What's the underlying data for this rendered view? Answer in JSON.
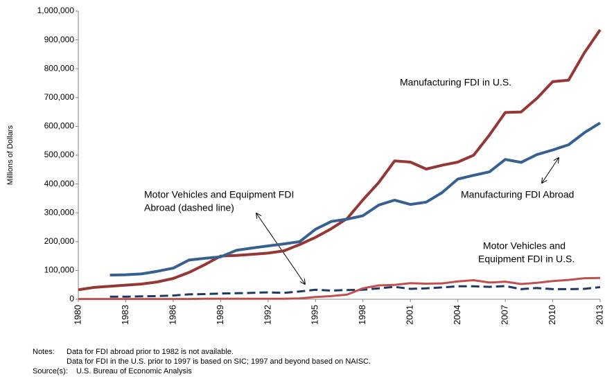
{
  "chart_data": {
    "type": "line",
    "y_label": "Millions of Dollars",
    "x": [
      1980,
      1981,
      1982,
      1983,
      1984,
      1985,
      1986,
      1987,
      1988,
      1989,
      1990,
      1991,
      1992,
      1993,
      1994,
      1995,
      1996,
      1997,
      1998,
      1999,
      2000,
      2001,
      2002,
      2003,
      2004,
      2005,
      2006,
      2007,
      2008,
      2009,
      2010,
      2011,
      2012,
      2013
    ],
    "xlim": [
      1980,
      2013
    ],
    "xticks": [
      1980,
      1983,
      1986,
      1989,
      1992,
      1995,
      1998,
      2001,
      2004,
      2007,
      2010,
      2013
    ],
    "ylim": [
      0,
      1000000
    ],
    "yticks": [
      0,
      {
        "value": 100000,
        "label": "100,000"
      },
      {
        "value": 200000,
        "label": "200,000"
      },
      {
        "value": 300000,
        "label": "300,000"
      },
      {
        "value": 400000,
        "label": "400,000"
      },
      {
        "value": 500000,
        "label": "500,000"
      },
      {
        "value": 600000,
        "label": "600,000"
      },
      {
        "value": 700000,
        "label": "700,000"
      },
      {
        "value": 800000,
        "label": "800,000"
      },
      {
        "value": 900000,
        "label": "900,000"
      },
      {
        "value": 1000000,
        "label": "1,000,000"
      }
    ],
    "series": [
      {
        "name": "Manufacturing FDI in U.S.",
        "color": "#953735",
        "width": 4,
        "dashed": false,
        "values": [
          33000,
          41000,
          45000,
          49000,
          53000,
          60000,
          72000,
          93000,
          120000,
          150000,
          152000,
          156000,
          160000,
          168000,
          190000,
          215000,
          245000,
          280000,
          345000,
          405000,
          480000,
          476000,
          452000,
          465000,
          476000,
          500000,
          570000,
          648000,
          650000,
          697000,
          755000,
          760000,
          855000,
          935000
        ]
      },
      {
        "name": "Manufacturing FDI Abroad",
        "color": "#376092",
        "width": 4,
        "dashed": false,
        "values": [
          null,
          null,
          84000,
          85000,
          88000,
          97000,
          108000,
          136000,
          142000,
          147000,
          170000,
          178000,
          185000,
          192000,
          200000,
          243000,
          270000,
          278000,
          290000,
          327000,
          344000,
          329000,
          337000,
          370000,
          417000,
          430000,
          442000,
          485000,
          475000,
          502000,
          518000,
          536000,
          578000,
          612000
        ]
      },
      {
        "name": "Motor Vehicles and Equipment FDI Abroad",
        "color": "#1f3864",
        "width": 3,
        "dashed": true,
        "values": [
          null,
          null,
          9000,
          9000,
          10000,
          11000,
          13000,
          17000,
          18000,
          20000,
          21000,
          22000,
          24000,
          22000,
          27000,
          33000,
          30000,
          32000,
          33000,
          38000,
          43000,
          36000,
          38000,
          41000,
          45000,
          45000,
          43000,
          46000,
          35000,
          39000,
          35000,
          35000,
          36000,
          42000
        ]
      },
      {
        "name": "Motor Vehicles and Equipment FDI in U.S.",
        "color": "#c0504d",
        "width": 3,
        "dashed": false,
        "values": [
          1000,
          1000,
          1000,
          1000,
          1000,
          1000,
          1000,
          1000,
          2000,
          2000,
          2000,
          2000,
          2000,
          2000,
          3000,
          8000,
          11000,
          16000,
          38000,
          48000,
          50000,
          56000,
          54000,
          55000,
          62000,
          66000,
          58000,
          61000,
          53000,
          57000,
          63000,
          67000,
          73000,
          74000
        ]
      }
    ],
    "annotations": [
      [
        "Manufacturing FDI in U.S."
      ],
      [
        "Manufacturing FDI Abroad"
      ],
      [
        "Motor Vehicles and Equipment FDI",
        "Abroad (dashed line)"
      ],
      [
        "Motor Vehicles and",
        "Equipment FDI in U.S."
      ]
    ],
    "notes": [
      [
        "Notes:",
        "Data for FDI abroad prior to 1982 is not available."
      ],
      [
        "Data for FDI in the U.S. prior to 1997 is based on SIC; 1997 and beyond based on NAISC."
      ],
      [
        "Source(s):",
        "U.S. Bureau of Economic Analysis"
      ]
    ]
  }
}
